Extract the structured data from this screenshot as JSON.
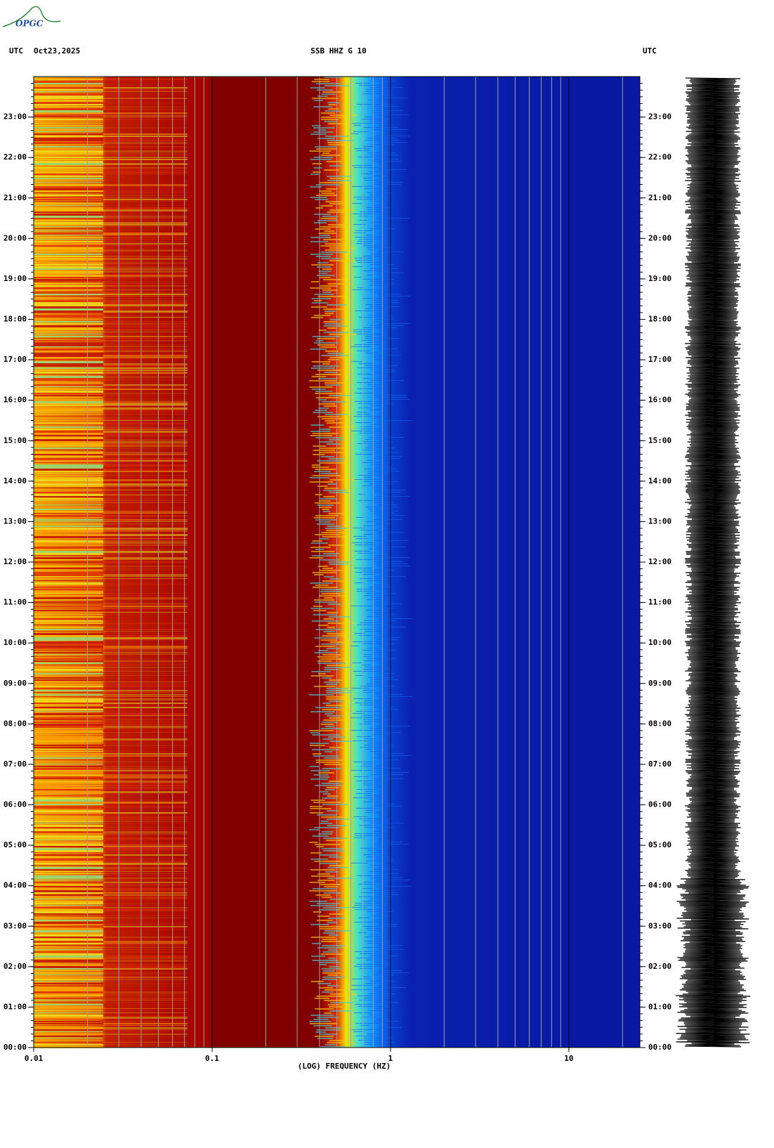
{
  "logo": "OPGC",
  "chart_data": {
    "type": "spectrogram",
    "title": "SSB HHZ G 10",
    "left_header": "UTC",
    "date": "Oct23,2025",
    "right_header": "UTC",
    "xlabel": "(LOG) FREQUENCY (HZ)",
    "xscale": "log",
    "xlim": [
      0.01,
      25
    ],
    "xticks": [
      0.01,
      0.1,
      1,
      10
    ],
    "xminor": [
      0.02,
      0.03,
      0.04,
      0.05,
      0.06,
      0.07,
      0.08,
      0.09,
      0.2,
      0.3,
      0.4,
      0.5,
      0.6,
      0.7,
      0.8,
      0.9,
      2,
      3,
      4,
      5,
      6,
      7,
      8,
      9,
      20
    ],
    "ylim": [
      0,
      24
    ],
    "yticks": [
      {
        "value": 0,
        "label": "00:00"
      },
      {
        "value": 1,
        "label": "01:00"
      },
      {
        "value": 2,
        "label": "02:00"
      },
      {
        "value": 3,
        "label": "03:00"
      },
      {
        "value": 4,
        "label": "04:00"
      },
      {
        "value": 5,
        "label": "05:00"
      },
      {
        "value": 6,
        "label": "06:00"
      },
      {
        "value": 7,
        "label": "07:00"
      },
      {
        "value": 8,
        "label": "08:00"
      },
      {
        "value": 9,
        "label": "09:00"
      },
      {
        "value": 10,
        "label": "10:00"
      },
      {
        "value": 11,
        "label": "11:00"
      },
      {
        "value": 12,
        "label": "12:00"
      },
      {
        "value": 13,
        "label": "13:00"
      },
      {
        "value": 14,
        "label": "14:00"
      },
      {
        "value": 15,
        "label": "15:00"
      },
      {
        "value": 16,
        "label": "16:00"
      },
      {
        "value": 17,
        "label": "17:00"
      },
      {
        "value": 18,
        "label": "18:00"
      },
      {
        "value": 19,
        "label": "19:00"
      },
      {
        "value": 20,
        "label": "20:00"
      },
      {
        "value": 21,
        "label": "21:00"
      },
      {
        "value": 22,
        "label": "22:00"
      },
      {
        "value": 23,
        "label": "23:00"
      }
    ],
    "grid": true
  }
}
